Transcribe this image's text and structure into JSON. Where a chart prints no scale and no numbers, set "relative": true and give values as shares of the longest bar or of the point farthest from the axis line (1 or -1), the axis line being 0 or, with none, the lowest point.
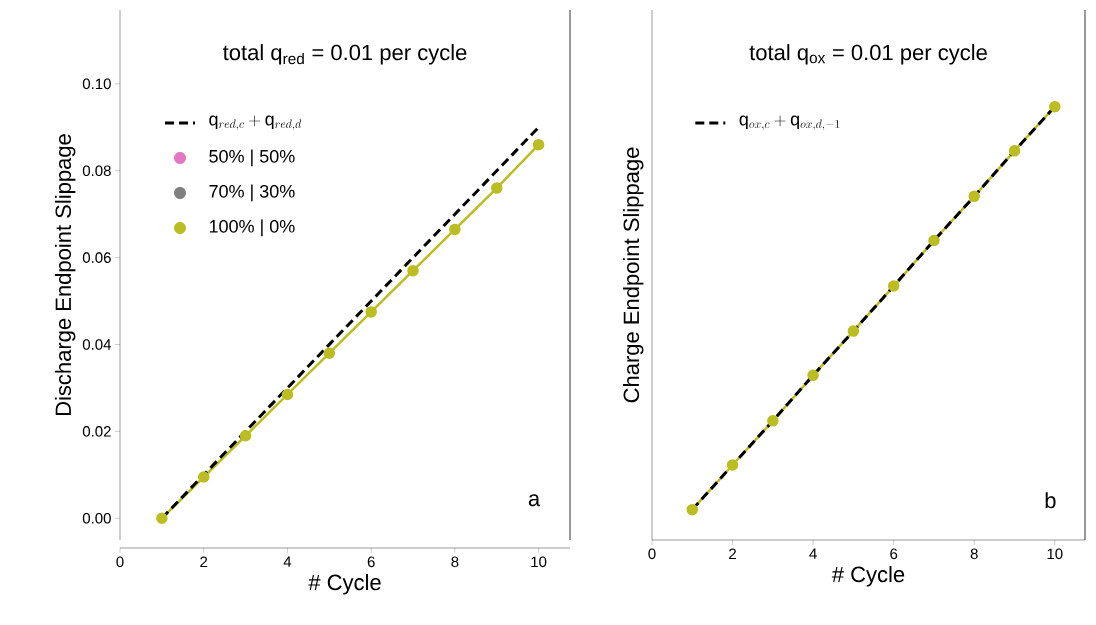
{
  "chart_data": [
    {
      "type": "line",
      "title": "total q$_{red}$ = 0.01 per cycle",
      "xlabel": "# Cycle",
      "ylabel": "Discharge Endpoint Slippage",
      "x": [
        1,
        2,
        3,
        4,
        5,
        6,
        7,
        8,
        9,
        10
      ],
      "xlim": [
        0,
        10.75
      ],
      "xticks": [
        0,
        2,
        4,
        6,
        8,
        10
      ],
      "ylim": [
        -0.005,
        0.117
      ],
      "yticks": [
        {
          "value": 0,
          "label": "0.00"
        },
        {
          "value": 0.02,
          "label": "0.02"
        },
        {
          "value": 0.04,
          "label": "0.04"
        },
        {
          "value": 0.06,
          "label": "0.06"
        },
        {
          "value": 0.08,
          "label": "0.08"
        },
        {
          "value": 0.1,
          "label": "0.10"
        }
      ],
      "legend": "top left",
      "annotations": [
        "a"
      ],
      "series": [
        {
          "name": "\\mathrm{q}_{red, c} + \\mathrm{q}_{red, d}",
          "color": "#000000",
          "marker": "none",
          "line_style": "dashed",
          "values": [
            0,
            0.01,
            0.02,
            0.03,
            0.04,
            0.05,
            0.06,
            0.07,
            0.08,
            0.09
          ]
        },
        {
          "name": "50% | 50%",
          "color": "#e377c2",
          "marker": "circle",
          "values": [
            null,
            null,
            null,
            null,
            null,
            null,
            null,
            null,
            null,
            null
          ]
        },
        {
          "name": "70% | 30%",
          "color": "#7f7f7f",
          "marker": "circle",
          "values": [
            null,
            null,
            null,
            null,
            null,
            null,
            null,
            null,
            null,
            null
          ]
        },
        {
          "name": "100% | 0%",
          "color": "#bcbd22",
          "marker": "circle",
          "line_style": "solid",
          "values": [
            0,
            0.0095,
            0.019,
            0.0285,
            0.038,
            0.0475,
            0.057,
            0.0665,
            0.076,
            0.086
          ]
        }
      ]
    },
    {
      "type": "line",
      "title": "total q$_{ox}$ = 0.01 per cycle",
      "xlabel": "# Cycle",
      "ylabel": "Charge Endpoint Slippage",
      "x": [
        1,
        2,
        3,
        4,
        5,
        6,
        7,
        8,
        9,
        10
      ],
      "xlim": [
        0,
        10.75
      ],
      "xticks": [
        0,
        2,
        4,
        6,
        8,
        10
      ],
      "relative": true,
      "legend": "top left",
      "annotations": [
        "b"
      ],
      "series": [
        {
          "name": "\\mathrm{q}_{ox, c} + \\mathrm{q}_{ox, d, -1}",
          "color": "#000000",
          "marker": "none",
          "line_style": "dashed",
          "values": [
            0.07,
            0.173,
            0.275,
            0.38,
            0.482,
            0.586,
            0.691,
            0.793,
            0.898,
            1
          ]
        },
        {
          "color": "#bcbd22",
          "marker": "circle",
          "line_style": "solid",
          "values": [
            0.07,
            0.173,
            0.275,
            0.38,
            0.482,
            0.586,
            0.691,
            0.793,
            0.898,
            1
          ]
        }
      ]
    }
  ]
}
